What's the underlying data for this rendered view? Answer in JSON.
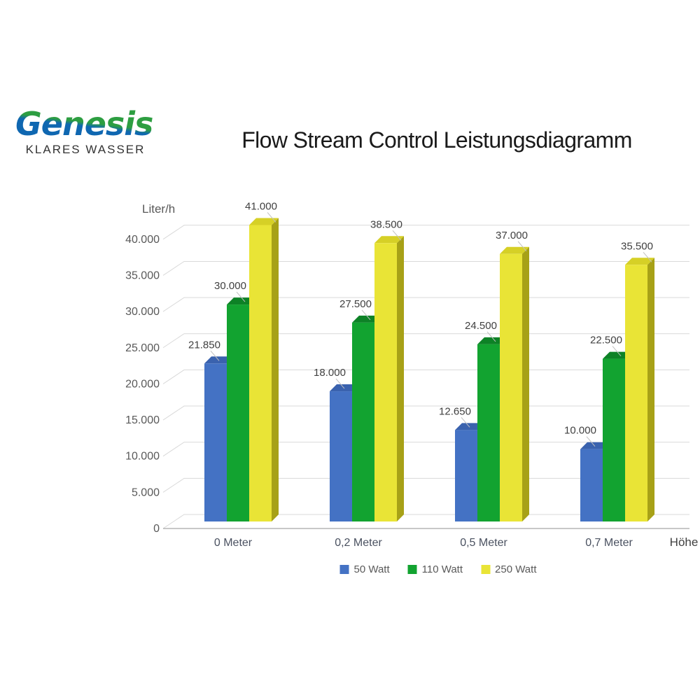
{
  "logo": {
    "brand": "Genesis",
    "subtitle": "KLARES WASSER",
    "brand_green": "#2D9E41",
    "brand_blue": "#0F67B1"
  },
  "header": {
    "title": "Flow Stream Control Leistungsdiagramm"
  },
  "chart_data": {
    "type": "bar",
    "style": "3d-column",
    "title": "Flow Stream Control Leistungsdiagramm",
    "ylabel": "Liter/h",
    "xlabel": "Höhe",
    "categories": [
      "0 Meter",
      "0,2 Meter",
      "0,5 Meter",
      "0,7 Meter"
    ],
    "series": [
      {
        "name": "50 Watt",
        "color": "#4472C4",
        "color_top": "#3A62AE",
        "color_side": "#2F5496",
        "values": [
          21850,
          18000,
          12650,
          10000
        ],
        "labels": [
          "21.850",
          "18.000",
          "12.650",
          "10.000"
        ]
      },
      {
        "name": "110 Watt",
        "color": "#12A330",
        "color_top": "#0D8226",
        "color_side": "#0B7A23",
        "values": [
          30000,
          27500,
          24500,
          22500
        ],
        "labels": [
          "30.000",
          "27.500",
          "24.500",
          "22.500"
        ]
      },
      {
        "name": "250 Watt",
        "color": "#E9E436",
        "color_top": "#D6D026",
        "color_side": "#A7A117",
        "values": [
          41000,
          38500,
          37000,
          35500
        ],
        "labels": [
          "41.000",
          "38.500",
          "37.000",
          "35.500"
        ]
      }
    ],
    "ylim": [
      0,
      40000
    ],
    "ytick_step": 5000,
    "ytick_labels": [
      "0",
      "5.000",
      "10.000",
      "15.000",
      "20.000",
      "25.000",
      "30.000",
      "35.000",
      "40.000"
    ],
    "grid": true,
    "legend_position": "bottom",
    "colors": {
      "gridline": "#D9D9D9",
      "axis_floor": "#A6A6A6",
      "tick_text": "#595959",
      "axis_title_text": "#595959",
      "category_text": "#4A5160",
      "xlabel_text": "#404040",
      "data_label_text": "#404040",
      "leader_line": "#BFBFBF"
    }
  }
}
